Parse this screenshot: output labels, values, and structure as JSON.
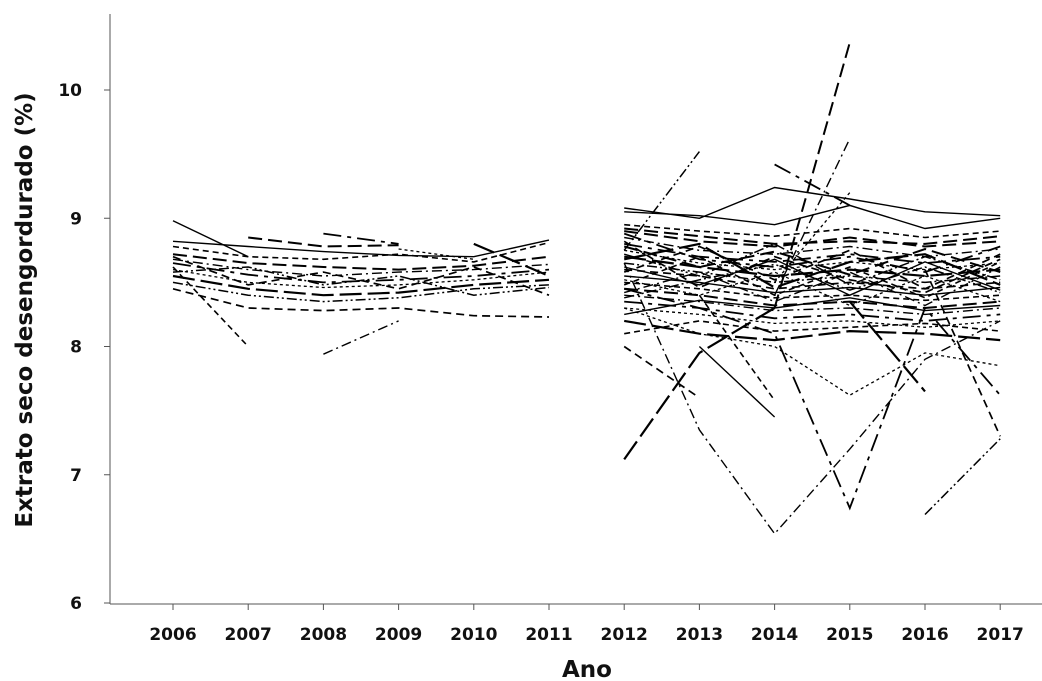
{
  "chart_data": {
    "type": "line",
    "title": "",
    "xlabel": "Ano",
    "ylabel": "Extrato seco desengordurado (%)",
    "x_ticks": [
      "2006",
      "2007",
      "2008",
      "2009",
      "2010",
      "2011",
      "2012",
      "2013",
      "2014",
      "2015",
      "2016",
      "2017"
    ],
    "y_ticks": [
      "6",
      "7",
      "8",
      "9",
      "10"
    ],
    "ylim": [
      5.9,
      10.55
    ],
    "grid": false,
    "legend": "none",
    "line_color": "#000000",
    "series": [
      {
        "x": [
          2006,
          2007,
          2008,
          2009,
          2010,
          2011
        ],
        "y": [
          8.82,
          8.78,
          8.74,
          8.71,
          8.7,
          8.83
        ]
      },
      {
        "x": [
          2006,
          2007,
          2008,
          2009,
          2010,
          2011
        ],
        "y": [
          8.78,
          8.7,
          8.68,
          8.72,
          8.66,
          8.81
        ]
      },
      {
        "x": [
          2006,
          2007,
          2008,
          2009,
          2010,
          2011
        ],
        "y": [
          8.72,
          8.65,
          8.62,
          8.6,
          8.63,
          8.7
        ]
      },
      {
        "x": [
          2006,
          2007,
          2008,
          2009,
          2010,
          2011
        ],
        "y": [
          8.68,
          8.6,
          8.55,
          8.58,
          8.6,
          8.64
        ]
      },
      {
        "x": [
          2006,
          2007,
          2008,
          2009,
          2010,
          2011
        ],
        "y": [
          8.65,
          8.56,
          8.5,
          8.52,
          8.55,
          8.6
        ]
      },
      {
        "x": [
          2006,
          2007,
          2008,
          2009,
          2010,
          2011
        ],
        "y": [
          8.6,
          8.5,
          8.46,
          8.48,
          8.52,
          8.58
        ]
      },
      {
        "x": [
          2006,
          2007,
          2008,
          2009,
          2010,
          2011
        ],
        "y": [
          8.55,
          8.45,
          8.4,
          8.42,
          8.48,
          8.52
        ]
      },
      {
        "x": [
          2006,
          2007,
          2008,
          2009,
          2010,
          2011
        ],
        "y": [
          8.5,
          8.4,
          8.35,
          8.38,
          8.45,
          8.48
        ]
      },
      {
        "x": [
          2006,
          2007,
          2008,
          2009,
          2010,
          2011
        ],
        "y": [
          8.45,
          8.3,
          8.28,
          8.3,
          8.24,
          8.23
        ]
      },
      {
        "x": [
          2006,
          2007
        ],
        "y": [
          8.98,
          8.7
        ]
      },
      {
        "x": [
          2006,
          2007
        ],
        "y": [
          8.62,
          8.0
        ]
      },
      {
        "x": [
          2007,
          2008,
          2009
        ],
        "y": [
          8.85,
          8.78,
          8.79
        ]
      },
      {
        "x": [
          2008,
          2009
        ],
        "y": [
          7.94,
          8.2
        ]
      },
      {
        "x": [
          2008,
          2009
        ],
        "y": [
          8.88,
          8.8
        ]
      },
      {
        "x": [
          2009,
          2010
        ],
        "y": [
          8.76,
          8.68
        ]
      },
      {
        "x": [
          2010,
          2011
        ],
        "y": [
          8.8,
          8.55
        ]
      },
      {
        "x": [
          2006,
          2007,
          2008,
          2009,
          2010,
          2011
        ],
        "y": [
          8.58,
          8.62,
          8.48,
          8.55,
          8.4,
          8.46
        ]
      },
      {
        "x": [
          2006,
          2007,
          2008,
          2009,
          2010,
          2011
        ],
        "y": [
          8.7,
          8.48,
          8.58,
          8.45,
          8.62,
          8.4
        ]
      },
      {
        "x": [
          2012,
          2013,
          2014,
          2015,
          2016,
          2017
        ],
        "y": [
          9.05,
          9.02,
          8.95,
          9.1,
          8.92,
          9.0
        ]
      },
      {
        "x": [
          2012,
          2013,
          2014,
          2015,
          2016,
          2017
        ],
        "y": [
          8.95,
          8.9,
          8.86,
          8.92,
          8.85,
          8.9
        ]
      },
      {
        "x": [
          2012,
          2013,
          2014,
          2015,
          2016,
          2017
        ],
        "y": [
          8.9,
          8.82,
          8.78,
          8.85,
          8.78,
          8.82
        ]
      },
      {
        "x": [
          2012,
          2013,
          2014,
          2015,
          2016,
          2017
        ],
        "y": [
          8.85,
          8.75,
          8.72,
          8.78,
          8.7,
          8.76
        ]
      },
      {
        "x": [
          2012,
          2013,
          2014,
          2015,
          2016,
          2017
        ],
        "y": [
          8.8,
          8.7,
          8.66,
          8.72,
          8.65,
          8.7
        ]
      },
      {
        "x": [
          2012,
          2013,
          2014,
          2015,
          2016,
          2017
        ],
        "y": [
          8.75,
          8.65,
          8.6,
          8.66,
          8.6,
          8.65
        ]
      },
      {
        "x": [
          2012,
          2013,
          2014,
          2015,
          2016,
          2017
        ],
        "y": [
          8.7,
          8.62,
          8.55,
          8.6,
          8.55,
          8.6
        ]
      },
      {
        "x": [
          2012,
          2013,
          2014,
          2015,
          2016,
          2017
        ],
        "y": [
          8.65,
          8.58,
          8.5,
          8.55,
          8.5,
          8.55
        ]
      },
      {
        "x": [
          2012,
          2013,
          2014,
          2015,
          2016,
          2017
        ],
        "y": [
          8.6,
          8.55,
          8.45,
          8.5,
          8.45,
          8.5
        ]
      },
      {
        "x": [
          2012,
          2013,
          2014,
          2015,
          2016,
          2017
        ],
        "y": [
          8.55,
          8.5,
          8.42,
          8.46,
          8.4,
          8.46
        ]
      },
      {
        "x": [
          2012,
          2013,
          2014,
          2015,
          2016,
          2017
        ],
        "y": [
          8.5,
          8.45,
          8.38,
          8.4,
          8.36,
          8.4
        ]
      },
      {
        "x": [
          2012,
          2013,
          2014,
          2015,
          2016,
          2017
        ],
        "y": [
          8.45,
          8.4,
          8.32,
          8.35,
          8.3,
          8.35
        ]
      },
      {
        "x": [
          2012,
          2013,
          2014,
          2015,
          2016,
          2017
        ],
        "y": [
          8.4,
          8.35,
          8.28,
          8.3,
          8.25,
          8.3
        ]
      },
      {
        "x": [
          2012,
          2013,
          2014,
          2015,
          2016,
          2017
        ],
        "y": [
          8.35,
          8.3,
          8.22,
          8.25,
          8.2,
          8.25
        ]
      },
      {
        "x": [
          2012,
          2013,
          2014,
          2015,
          2016,
          2017
        ],
        "y": [
          8.3,
          8.25,
          8.18,
          8.2,
          8.15,
          8.2
        ]
      },
      {
        "x": [
          2012,
          2013,
          2014,
          2015,
          2016,
          2017
        ],
        "y": [
          8.2,
          8.1,
          8.05,
          8.12,
          8.1,
          8.05
        ]
      },
      {
        "x": [
          2012,
          2013,
          2014,
          2015,
          2016,
          2017
        ],
        "y": [
          8.72,
          8.55,
          8.8,
          8.48,
          8.7,
          8.52
        ]
      },
      {
        "x": [
          2012,
          2013,
          2014,
          2015,
          2016,
          2017
        ],
        "y": [
          8.58,
          8.78,
          8.52,
          8.75,
          8.45,
          8.72
        ]
      },
      {
        "x": [
          2012,
          2013,
          2014,
          2015,
          2016,
          2017
        ],
        "y": [
          8.62,
          8.48,
          8.68,
          8.4,
          8.66,
          8.44
        ]
      },
      {
        "x": [
          2012,
          2013,
          2014,
          2015,
          2016,
          2017
        ],
        "y": [
          8.48,
          8.7,
          8.4,
          8.62,
          8.38,
          8.66
        ]
      },
      {
        "x": [
          2012,
          2013,
          2014,
          2015,
          2016,
          2017
        ],
        "y": [
          8.78,
          8.62,
          8.74,
          8.56,
          8.76,
          8.58
        ]
      },
      {
        "x": [
          2012,
          2013,
          2014,
          2015,
          2016,
          2017
        ],
        "y": [
          8.42,
          8.58,
          8.35,
          8.58,
          8.32,
          8.62
        ]
      },
      {
        "x": [
          2012,
          2013,
          2014,
          2015,
          2016,
          2017
        ],
        "y": [
          8.88,
          8.68,
          8.62,
          8.7,
          8.58,
          8.78
        ]
      },
      {
        "x": [
          2012,
          2013,
          2014,
          2015,
          2016,
          2017
        ],
        "y": [
          8.52,
          8.4,
          8.58,
          8.32,
          8.55,
          8.35
        ]
      },
      {
        "x": [
          2012,
          2013,
          2014,
          2015,
          2016,
          2017
        ],
        "y": [
          8.68,
          8.8,
          8.46,
          8.66,
          8.72,
          8.48
        ]
      },
      {
        "x": [
          2012,
          2013,
          2014,
          2015,
          2016,
          2017
        ],
        "y": [
          8.38,
          8.52,
          8.64,
          8.44,
          8.62,
          8.42
        ]
      },
      {
        "x": [
          2012,
          2013,
          2014,
          2015,
          2016,
          2017
        ],
        "y": [
          8.82,
          8.46,
          8.7,
          8.52,
          8.42,
          8.68
        ]
      },
      {
        "x": [
          2012,
          2013,
          2014,
          2015,
          2016,
          2017
        ],
        "y": [
          8.25,
          8.36,
          8.3,
          8.38,
          8.28,
          8.32
        ]
      },
      {
        "x": [
          2012,
          2013,
          2014,
          2015,
          2016,
          2017
        ],
        "y": [
          8.1,
          8.2,
          8.12,
          8.15,
          8.18,
          8.12
        ]
      },
      {
        "x": [
          2012,
          2013,
          2014,
          2015,
          2016,
          2017
        ],
        "y": [
          8.92,
          8.86,
          8.8,
          8.82,
          8.8,
          8.86
        ]
      },
      {
        "x": [
          2012,
          2013,
          2014,
          2015,
          2016,
          2017
        ],
        "y": [
          8.65,
          7.35,
          6.54,
          7.2,
          7.9,
          8.2
        ]
      },
      {
        "x": [
          2012,
          2013,
          2014,
          2015,
          2016,
          2017
        ],
        "y": [
          8.45,
          8.3,
          8.1,
          6.74,
          8.3,
          7.62
        ]
      },
      {
        "x": [
          2012,
          2013,
          2014,
          2015,
          2016,
          2017
        ],
        "y": [
          8.3,
          8.1,
          8.0,
          7.62,
          7.95,
          7.85
        ]
      },
      {
        "x": [
          2012,
          2013,
          2014
        ],
        "y": [
          7.12,
          7.95,
          8.3
        ]
      },
      {
        "x": [
          2012,
          2013
        ],
        "y": [
          8.75,
          9.52
        ]
      },
      {
        "x": [
          2012,
          2013
        ],
        "y": [
          8.0,
          7.6
        ]
      },
      {
        "x": [
          2013,
          2014
        ],
        "y": [
          8.0,
          7.45
        ]
      },
      {
        "x": [
          2013,
          2014
        ],
        "y": [
          8.4,
          7.58
        ]
      },
      {
        "x": [
          2014,
          2015
        ],
        "y": [
          8.3,
          10.37
        ]
      },
      {
        "x": [
          2014,
          2015
        ],
        "y": [
          8.4,
          9.62
        ]
      },
      {
        "x": [
          2014,
          2015
        ],
        "y": [
          9.42,
          9.1
        ]
      },
      {
        "x": [
          2014,
          2015
        ],
        "y": [
          8.5,
          9.2
        ]
      },
      {
        "x": [
          2015,
          2016
        ],
        "y": [
          8.35,
          7.65
        ]
      },
      {
        "x": [
          2016,
          2017
        ],
        "y": [
          6.69,
          7.28
        ]
      },
      {
        "x": [
          2016,
          2017
        ],
        "y": [
          8.6,
          7.3
        ]
      },
      {
        "x": [
          2012,
          2013,
          2014,
          2015,
          2016,
          2017
        ],
        "y": [
          9.08,
          9.0,
          9.24,
          9.15,
          9.05,
          9.02
        ]
      }
    ]
  }
}
